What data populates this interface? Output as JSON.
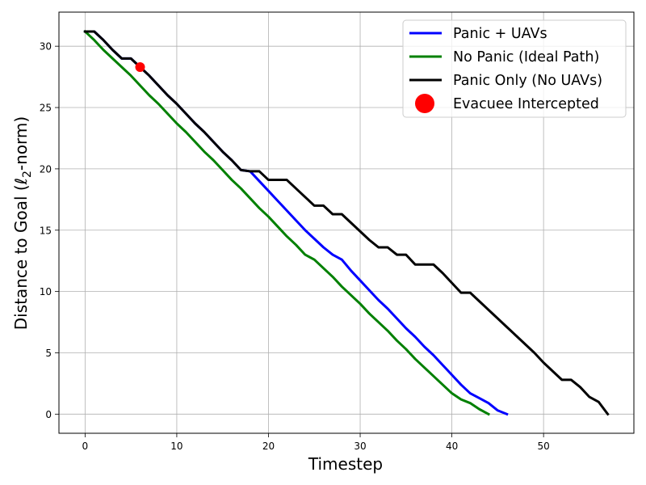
{
  "chart_data": {
    "type": "line",
    "xlabel": "Timestep",
    "ylabel_parts": {
      "pre": "Distance to Goal (",
      "ell": "ℓ",
      "sub": "2",
      "post": "-norm)"
    },
    "xlim": [
      -2.85,
      59.85
    ],
    "ylim": [
      -1.56,
      32.78
    ],
    "xticks": [
      0,
      10,
      20,
      30,
      40,
      50
    ],
    "yticks": [
      0,
      5,
      10,
      15,
      20,
      25,
      30
    ],
    "grid": true,
    "legend_position": "top-right",
    "series": [
      {
        "name": "Panic + UAVs",
        "color": "#0000ff",
        "x": [
          0,
          1,
          2,
          3,
          4,
          5,
          6,
          7,
          8,
          9,
          10,
          11,
          12,
          13,
          14,
          15,
          16,
          17,
          18,
          19,
          20,
          21,
          22,
          23,
          24,
          25,
          26,
          27,
          28,
          29,
          30,
          31,
          32,
          33,
          34,
          35,
          36,
          37,
          38,
          39,
          40,
          41,
          42,
          43,
          44,
          45,
          46
        ],
        "y": [
          31.2,
          31.2,
          30.5,
          29.7,
          29.0,
          29.0,
          28.3,
          27.6,
          26.8,
          26.0,
          25.3,
          24.5,
          23.7,
          23.0,
          22.2,
          21.4,
          20.7,
          19.9,
          19.8,
          19.0,
          18.2,
          17.4,
          16.6,
          15.8,
          15.0,
          14.3,
          13.6,
          13.0,
          12.6,
          11.7,
          10.9,
          10.1,
          9.3,
          8.6,
          7.8,
          7.0,
          6.3,
          5.5,
          4.8,
          4.0,
          3.2,
          2.4,
          1.7,
          1.3,
          0.9,
          0.3,
          0.0
        ]
      },
      {
        "name": "No Panic (Ideal Path)",
        "color": "#008000",
        "x": [
          0,
          1,
          2,
          3,
          4,
          5,
          6,
          7,
          8,
          9,
          10,
          11,
          12,
          13,
          14,
          15,
          16,
          17,
          18,
          19,
          20,
          21,
          22,
          23,
          24,
          25,
          26,
          27,
          28,
          29,
          30,
          31,
          32,
          33,
          34,
          35,
          36,
          37,
          38,
          39,
          40,
          41,
          42,
          43,
          44
        ],
        "y": [
          31.2,
          30.5,
          29.7,
          29.0,
          28.3,
          27.6,
          26.8,
          26.0,
          25.3,
          24.5,
          23.7,
          23.0,
          22.2,
          21.4,
          20.7,
          19.9,
          19.1,
          18.4,
          17.6,
          16.8,
          16.1,
          15.3,
          14.5,
          13.8,
          13.0,
          12.6,
          11.9,
          11.2,
          10.4,
          9.7,
          9.0,
          8.2,
          7.5,
          6.8,
          6.0,
          5.3,
          4.5,
          3.8,
          3.1,
          2.4,
          1.7,
          1.2,
          0.9,
          0.4,
          0.0
        ]
      },
      {
        "name": "Panic Only (No UAVs)",
        "color": "#000000",
        "x": [
          0,
          1,
          2,
          3,
          4,
          5,
          6,
          7,
          8,
          9,
          10,
          11,
          12,
          13,
          14,
          15,
          16,
          17,
          18,
          19,
          20,
          21,
          22,
          23,
          24,
          25,
          26,
          27,
          28,
          29,
          30,
          31,
          32,
          33,
          34,
          35,
          36,
          37,
          38,
          39,
          40,
          41,
          42,
          43,
          44,
          45,
          46,
          47,
          48,
          49,
          50,
          51,
          52,
          53,
          54,
          55,
          56,
          57
        ],
        "y": [
          31.2,
          31.2,
          30.5,
          29.7,
          29.0,
          29.0,
          28.3,
          27.6,
          26.8,
          26.0,
          25.3,
          24.5,
          23.7,
          23.0,
          22.2,
          21.4,
          20.7,
          19.9,
          19.8,
          19.8,
          19.1,
          19.1,
          19.1,
          18.4,
          17.7,
          17.0,
          17.0,
          16.3,
          16.3,
          15.6,
          14.9,
          14.2,
          13.6,
          13.6,
          13.0,
          13.0,
          12.2,
          12.2,
          12.2,
          11.5,
          10.7,
          9.9,
          9.9,
          9.2,
          8.5,
          7.8,
          7.1,
          6.4,
          5.7,
          5.0,
          4.2,
          3.5,
          2.8,
          2.8,
          2.2,
          1.4,
          1.0,
          0.0
        ]
      }
    ],
    "markers": [
      {
        "name": "Evacuee Intercepted",
        "color": "#ff0000",
        "x": 6,
        "y": 28.3
      }
    ]
  }
}
